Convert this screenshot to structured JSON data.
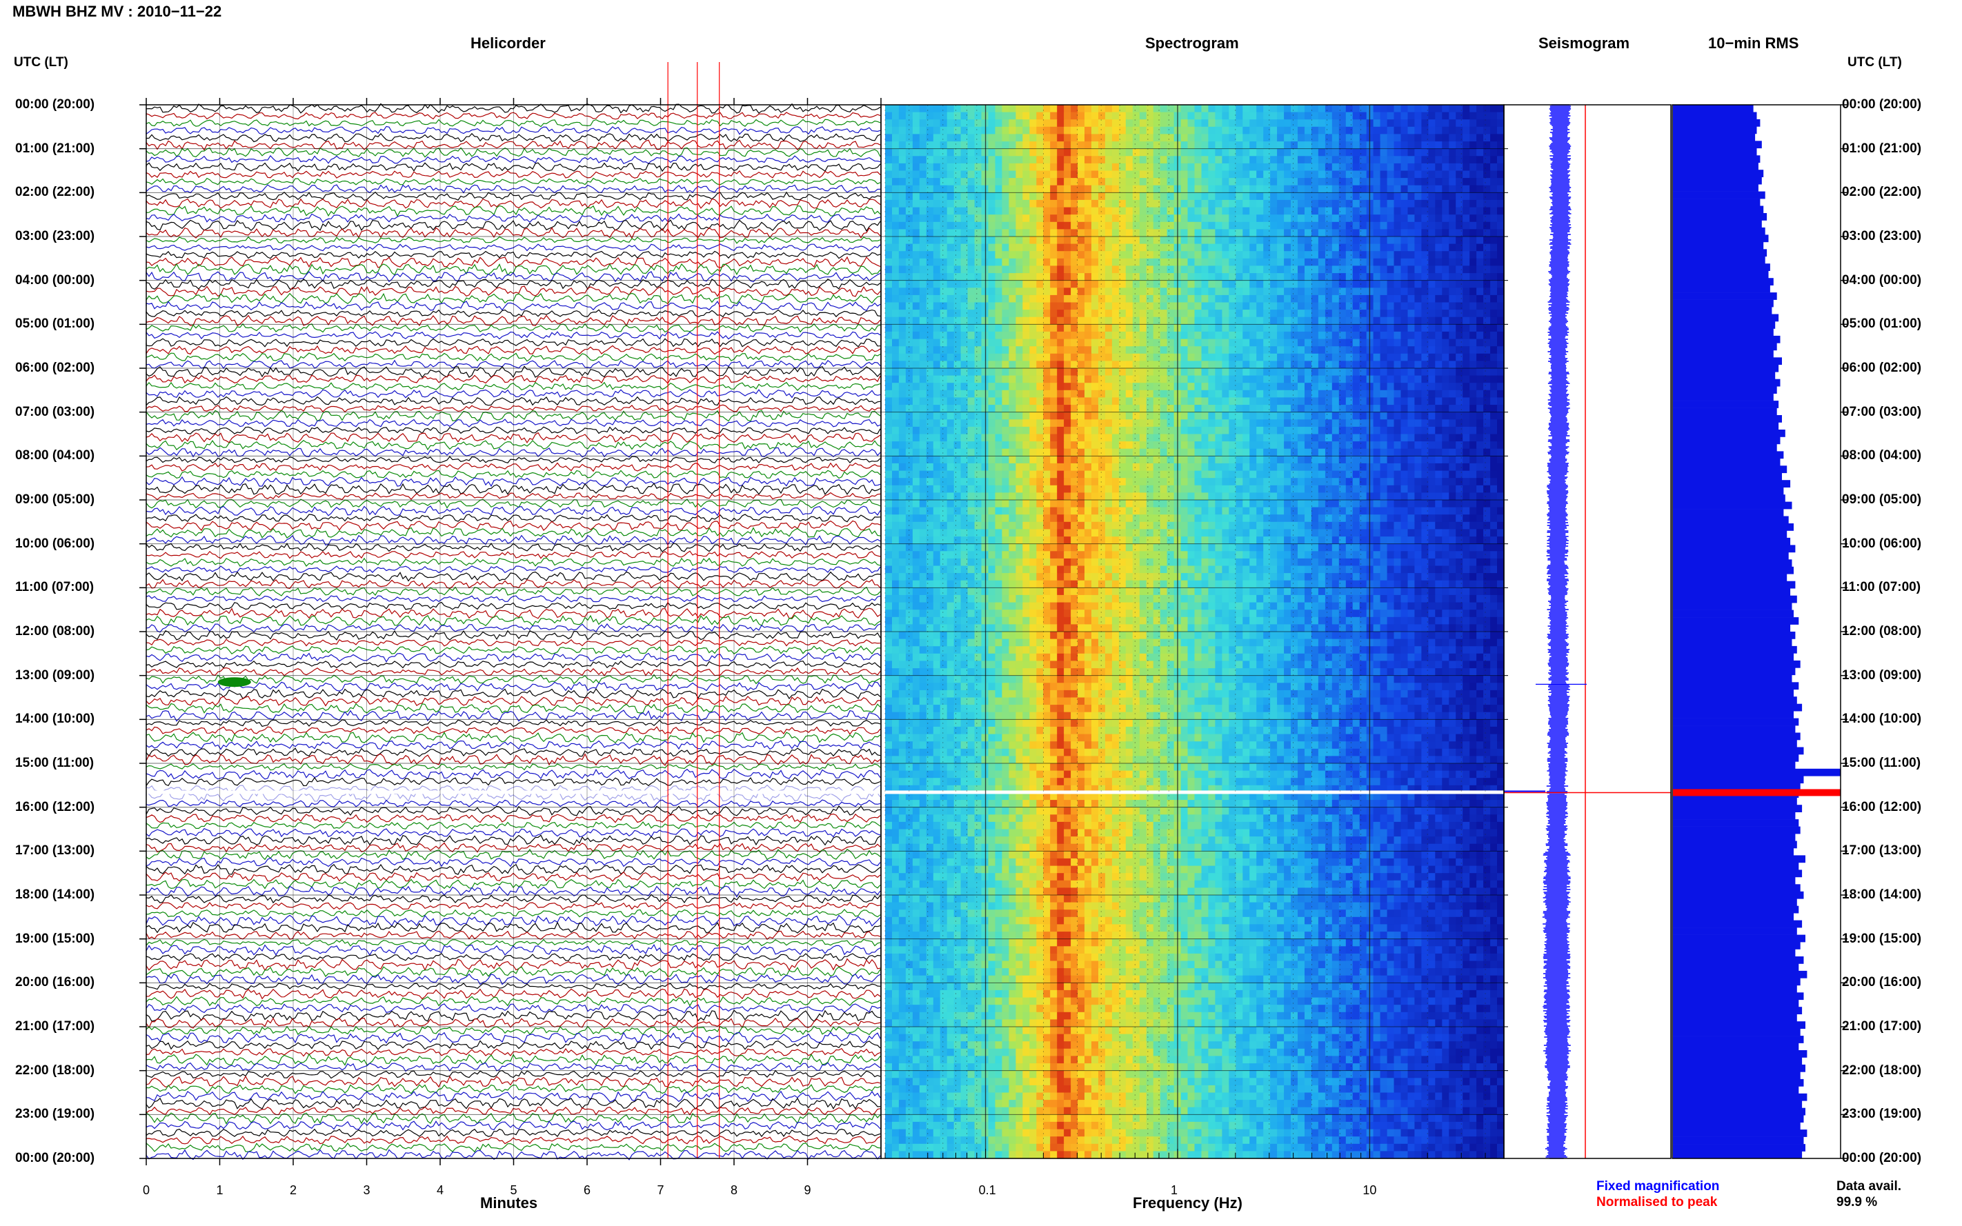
{
  "header": {
    "title": "MBWH BHZ MV : 2010−11−22",
    "utc_lt_left": "UTC (LT)",
    "utc_lt_right": "UTC (LT)"
  },
  "panels": {
    "helicorder": "Helicorder",
    "spectrogram": "Spectrogram",
    "seismogram": "Seismogram",
    "rms": "10−min RMS"
  },
  "footer": {
    "minutes_label": "Minutes",
    "frequency_label": "Frequency (Hz)",
    "fixed_magnification": "Fixed magnification",
    "normalised_to_peak": "Normalised to peak",
    "data_avail_label": "Data avail.",
    "data_avail_value": "99.9 %"
  },
  "colors": {
    "trace_cycle": [
      "#000000",
      "#b00000",
      "#0a8a0a",
      "#1414c8"
    ],
    "fixed_magnification": "#0000ff",
    "normalised_to_peak": "#ff0000",
    "rms_bar": "#0a14e6",
    "gap_marker": "#ff0000"
  },
  "time_labels": [
    "00:00 (20:00)",
    "01:00 (21:00)",
    "02:00 (22:00)",
    "03:00 (23:00)",
    "04:00 (00:00)",
    "05:00 (01:00)",
    "06:00 (02:00)",
    "07:00 (03:00)",
    "08:00 (04:00)",
    "09:00 (05:00)",
    "10:00 (06:00)",
    "11:00 (07:00)",
    "12:00 (08:00)",
    "13:00 (09:00)",
    "14:00 (10:00)",
    "15:00 (11:00)",
    "16:00 (12:00)",
    "17:00 (13:00)",
    "18:00 (14:00)",
    "19:00 (15:00)",
    "20:00 (16:00)",
    "21:00 (17:00)",
    "22:00 (18:00)",
    "23:00 (19:00)",
    "00:00 (20:00)"
  ],
  "chart_data": {
    "type": "heatmap",
    "helicorder": {
      "minutes_axis_ticks": [
        "0",
        "1",
        "2",
        "3",
        "4",
        "5",
        "6",
        "7",
        "8",
        "9"
      ],
      "minutes_range": [
        0,
        10
      ],
      "traces_per_hour": 6,
      "data_gap_utc": "15:40",
      "event_markers_minutes": [
        7.1,
        7.5,
        7.8
      ]
    },
    "spectrogram": {
      "x_scale": "log",
      "frequency_range_hz": [
        0.03,
        50
      ],
      "frequency_ticks": [
        "0.1",
        "1",
        "10"
      ],
      "peak_band_hz": [
        0.2,
        0.3
      ],
      "colormap": "blue-cyan-yellow-red"
    },
    "seismogram": {
      "modes": [
        "Fixed magnification",
        "Normalised to peak"
      ],
      "gap_utc": "15:40"
    },
    "rms": {
      "interval_minutes": 10,
      "relative_values": [
        0.48,
        0.5,
        0.52,
        0.5,
        0.49,
        0.53,
        0.5,
        0.52,
        0.51,
        0.54,
        0.53,
        0.51,
        0.55,
        0.52,
        0.54,
        0.56,
        0.53,
        0.55,
        0.57,
        0.54,
        0.56,
        0.55,
        0.58,
        0.57,
        0.6,
        0.58,
        0.62,
        0.6,
        0.59,
        0.63,
        0.61,
        0.6,
        0.64,
        0.62,
        0.6,
        0.65,
        0.63,
        0.61,
        0.64,
        0.62,
        0.6,
        0.63,
        0.62,
        0.65,
        0.63,
        0.67,
        0.64,
        0.62,
        0.66,
        0.64,
        0.68,
        0.65,
        0.7,
        0.66,
        0.67,
        0.71,
        0.66,
        0.69,
        0.72,
        0.68,
        0.7,
        0.73,
        0.69,
        0.71,
        0.72,
        0.68,
        0.73,
        0.7,
        0.74,
        0.71,
        0.72,
        0.75,
        0.7,
        0.73,
        0.71,
        0.74,
        0.72,
        0.76,
        0.73,
        0.71,
        0.75,
        0.72,
        0.74,
        0.77,
        0.72,
        0.75,
        0.73,
        0.76,
        0.74,
        0.78,
        0.75,
        0.73,
        1.0,
        0.78,
        0.76,
        0.75,
        0.74,
        0.77,
        0.73,
        0.75,
        0.76,
        0.73,
        0.74,
        0.72,
        0.79,
        0.75,
        0.77,
        0.73,
        0.76,
        0.78,
        0.74,
        0.75,
        0.72,
        0.77,
        0.74,
        0.79,
        0.76,
        0.73,
        0.78,
        0.75,
        0.8,
        0.76,
        0.74,
        0.78,
        0.75,
        0.77,
        0.74,
        0.79,
        0.76,
        0.78,
        0.75,
        0.8,
        0.77,
        0.79,
        0.76,
        0.78,
        0.75,
        0.8,
        0.77,
        0.79,
        0.78,
        0.76,
        0.8,
        0.78,
        0.79,
        0.77
      ]
    }
  }
}
